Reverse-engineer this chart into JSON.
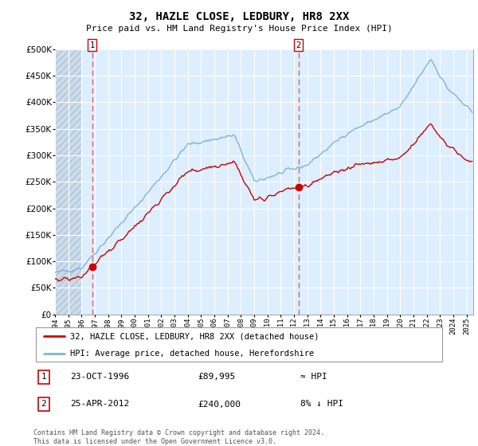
{
  "title": "32, HAZLE CLOSE, LEDBURY, HR8 2XX",
  "subtitle": "Price paid vs. HM Land Registry's House Price Index (HPI)",
  "ylim": [
    0,
    500000
  ],
  "yticks": [
    0,
    50000,
    100000,
    150000,
    200000,
    250000,
    300000,
    350000,
    400000,
    450000,
    500000
  ],
  "xlim_start": 1994.0,
  "xlim_end": 2025.5,
  "xticks": [
    1994,
    1995,
    1996,
    1997,
    1998,
    1999,
    2000,
    2001,
    2002,
    2003,
    2004,
    2005,
    2006,
    2007,
    2008,
    2009,
    2010,
    2011,
    2012,
    2013,
    2014,
    2015,
    2016,
    2017,
    2018,
    2019,
    2020,
    2021,
    2022,
    2023,
    2024,
    2025
  ],
  "hatch_end_year": 1996.0,
  "sale1_year": 1996.8,
  "sale1_price": 89995,
  "sale1_label": "1",
  "sale1_date": "23-OCT-1996",
  "sale1_text": "£89,995",
  "sale1_hpi": "≈ HPI",
  "sale2_year": 2012.33,
  "sale2_price": 240000,
  "sale2_label": "2",
  "sale2_date": "25-APR-2012",
  "sale2_text": "£240,000",
  "sale2_hpi": "8% ↓ HPI",
  "red_line_color": "#cc0000",
  "blue_line_color": "#7fb3d9",
  "dot_color": "#cc0000",
  "vline_color": "#e06060",
  "bg_color": "#ddeeff",
  "legend_label_red": "32, HAZLE CLOSE, LEDBURY, HR8 2XX (detached house)",
  "legend_label_blue": "HPI: Average price, detached house, Herefordshire",
  "footnote": "Contains HM Land Registry data © Crown copyright and database right 2024.\nThis data is licensed under the Open Government Licence v3.0."
}
